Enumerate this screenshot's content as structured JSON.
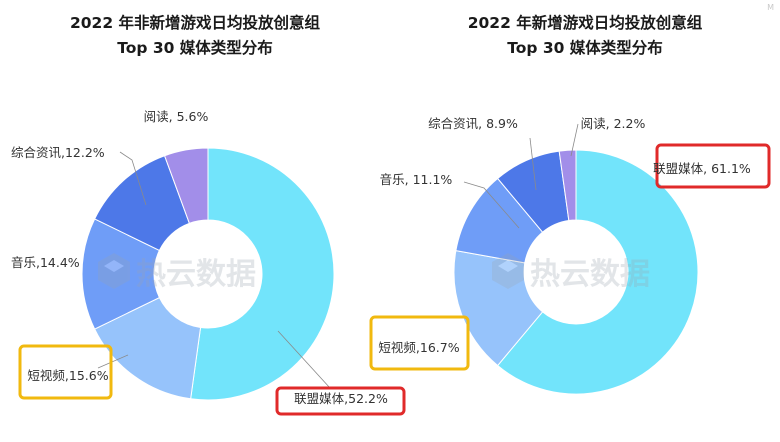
{
  "chart_data": [
    {
      "type": "pie",
      "title": "2022 年非新增游戏日均投放创意组",
      "subtitle": "Top 30 媒体类型分布",
      "slices": [
        {
          "name": "联盟媒体",
          "value": 52.2,
          "label": "联盟媒体,52.2%",
          "color": "#72e4fb",
          "highlight": "#e02a2a"
        },
        {
          "name": "短视频",
          "value": 15.6,
          "label": "短视频,15.6%",
          "color": "#96c3fb",
          "highlight": "#f1b90f"
        },
        {
          "name": "音乐",
          "value": 14.4,
          "label": "音乐,14.4%",
          "color": "#6f9df7"
        },
        {
          "name": "综合资讯",
          "value": 12.2,
          "label": "综合资讯,12.2%",
          "color": "#4d78e8"
        },
        {
          "name": "阅读",
          "value": 5.6,
          "label": "阅读, 5.6%",
          "color": "#a28ee9"
        }
      ]
    },
    {
      "type": "pie",
      "title": "2022 年新增游戏日均投放创意组",
      "subtitle": "Top 30 媒体类型分布",
      "slices": [
        {
          "name": "联盟媒体",
          "value": 61.1,
          "label": "联盟媒体, 61.1%",
          "color": "#72e4fb",
          "highlight": "#e02a2a"
        },
        {
          "name": "短视频",
          "value": 16.7,
          "label": "短视频,16.7%",
          "color": "#96c3fb",
          "highlight": "#f1b90f"
        },
        {
          "name": "音乐",
          "value": 11.1,
          "label": "音乐, 11.1%",
          "color": "#6f9df7"
        },
        {
          "name": "综合资讯",
          "value": 8.9,
          "label": "综合资讯, 8.9%",
          "color": "#4d78e8"
        },
        {
          "name": "阅读",
          "value": 2.2,
          "label": "阅读, 2.2%",
          "color": "#a28ee9"
        }
      ]
    }
  ],
  "watermark": "热云数据",
  "corner_mark": "M"
}
